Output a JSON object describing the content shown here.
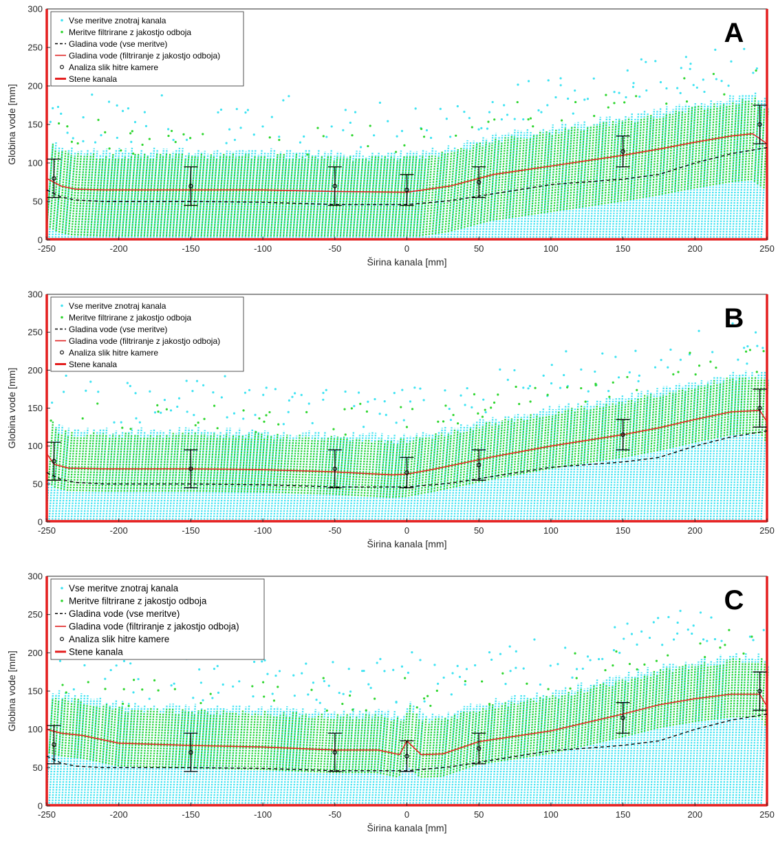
{
  "colors": {
    "all_points": "#3fe3f2",
    "filtered_points": "#2fd62f",
    "surface_all": "#000000",
    "surface_filtered": "#e02020",
    "walls": "#e41e1e",
    "camera": "#000000"
  },
  "chart_data": [
    {
      "type": "scatter",
      "panel_label": "A",
      "xlabel": "Širina kanala [mm]",
      "ylabel": "Globina vode [mm]",
      "xlim": [
        -250,
        250
      ],
      "ylim": [
        0,
        300
      ],
      "xticks": [
        -250,
        -200,
        -150,
        -100,
        -50,
        0,
        50,
        100,
        150,
        200,
        250
      ],
      "yticks": [
        0,
        50,
        100,
        150,
        200,
        250,
        300
      ],
      "legend": {
        "placement": "top-left",
        "entries": [
          "Vse meritve znotraj kanala",
          "Meritve filtrirane z jakostjo odboja",
          "Gladina vode (vse meritve)",
          "Gladina vode (filtriranje z jakostjo odboja)",
          "Analiza slik hitre kamere",
          "Stene kanala"
        ]
      },
      "series": [
        {
          "name": "Gladina vode (vse meritve)",
          "style": "dashed",
          "x": [
            -250,
            -240,
            -230,
            -210,
            -150,
            -100,
            -50,
            0,
            30,
            60,
            100,
            150,
            175,
            200,
            225,
            250
          ],
          "y": [
            65,
            56,
            52,
            50,
            50,
            49,
            46,
            46,
            51,
            60,
            72,
            79,
            85,
            100,
            112,
            120
          ]
        },
        {
          "name": "Gladina vode (filtriranje z jakostjo odboja)",
          "style": "solid",
          "x": [
            -250,
            -240,
            -230,
            -210,
            -150,
            -100,
            -50,
            0,
            30,
            60,
            100,
            150,
            175,
            200,
            225,
            240,
            250
          ],
          "y": [
            80,
            70,
            66,
            65,
            65,
            65,
            63,
            62,
            70,
            85,
            96,
            110,
            118,
            127,
            135,
            138,
            125
          ]
        },
        {
          "name": "Analiza slik hitre kamere",
          "x": [
            -245,
            -150,
            -50,
            0,
            50,
            150,
            245
          ],
          "y": [
            80,
            70,
            70,
            65,
            75,
            115,
            150
          ],
          "err": [
            25,
            25,
            25,
            20,
            20,
            20,
            25
          ]
        }
      ],
      "walls_x": [
        -250,
        250
      ]
    },
    {
      "type": "scatter",
      "panel_label": "B",
      "xlabel": "Širina kanala [mm]",
      "ylabel": "Globina vode [mm]",
      "xlim": [
        -250,
        250
      ],
      "ylim": [
        0,
        300
      ],
      "xticks": [
        -250,
        -200,
        -150,
        -100,
        -50,
        0,
        50,
        100,
        150,
        200,
        250
      ],
      "yticks": [
        0,
        50,
        100,
        150,
        200,
        250,
        300
      ],
      "legend": {
        "placement": "top-left",
        "entries": [
          "Vse meritve znotraj kanala",
          "Meritve filtrirane z jakostjo odboja",
          "Gladina vode (vse meritve)",
          "Gladina vode (filtriranje z jakostjo odboja)",
          "Analiza slik hitre kamere",
          "Stene kanala"
        ]
      },
      "series": [
        {
          "name": "Gladina vode (vse meritve)",
          "style": "dashed",
          "x": [
            -250,
            -240,
            -230,
            -210,
            -150,
            -100,
            -50,
            0,
            30,
            60,
            100,
            150,
            175,
            200,
            225,
            250
          ],
          "y": [
            65,
            56,
            52,
            50,
            50,
            49,
            46,
            46,
            51,
            60,
            72,
            79,
            85,
            100,
            112,
            120
          ]
        },
        {
          "name": "Gladina vode (filtriranje z jakostjo odboja)",
          "style": "solid",
          "x": [
            -250,
            -245,
            -235,
            -210,
            -150,
            -100,
            -50,
            -10,
            0,
            20,
            60,
            100,
            150,
            175,
            200,
            225,
            245,
            250
          ],
          "y": [
            90,
            76,
            71,
            70,
            70,
            69,
            66,
            62,
            63,
            70,
            86,
            100,
            115,
            124,
            135,
            145,
            147,
            132
          ]
        },
        {
          "name": "Analiza slik hitre kamere",
          "x": [
            -245,
            -150,
            -50,
            0,
            50,
            150,
            245
          ],
          "y": [
            80,
            70,
            70,
            65,
            75,
            115,
            150
          ],
          "err": [
            25,
            25,
            25,
            20,
            20,
            20,
            25
          ]
        }
      ],
      "walls_x": [
        -250,
        250
      ]
    },
    {
      "type": "scatter",
      "panel_label": "C",
      "xlabel": "Širina kanala [mm]",
      "ylabel": "Globina vode [mm]",
      "xlim": [
        -250,
        250
      ],
      "ylim": [
        0,
        300
      ],
      "xticks": [
        -250,
        -200,
        -150,
        -100,
        -50,
        0,
        50,
        100,
        150,
        200,
        250
      ],
      "yticks": [
        0,
        50,
        100,
        150,
        200,
        250,
        300
      ],
      "legend": {
        "placement": "top-left",
        "entries": [
          "Vse meritve znotraj kanala",
          "Meritve filtrirane z jakostjo odboja",
          "Gladina vode (vse meritve)",
          "Gladina vode (filtriranje z jakostjo odboja)",
          "Analiza slik hitre kamere",
          "Stene kanala"
        ]
      },
      "series": [
        {
          "name": "Gladina vode (vse meritve)",
          "style": "dashed",
          "x": [
            -250,
            -240,
            -230,
            -210,
            -150,
            -100,
            -50,
            0,
            30,
            60,
            100,
            150,
            175,
            200,
            225,
            250
          ],
          "y": [
            65,
            56,
            52,
            50,
            50,
            49,
            46,
            46,
            51,
            60,
            72,
            79,
            85,
            100,
            112,
            120
          ]
        },
        {
          "name": "Gladina vode (filtriranje z jakostjo odboja)",
          "style": "solid",
          "x": [
            -250,
            -240,
            -225,
            -200,
            -150,
            -100,
            -50,
            -20,
            -5,
            0,
            10,
            25,
            50,
            100,
            150,
            175,
            200,
            225,
            245,
            250
          ],
          "y": [
            100,
            95,
            92,
            82,
            79,
            77,
            73,
            73,
            67,
            85,
            67,
            68,
            84,
            98,
            120,
            132,
            140,
            146,
            146,
            130
          ]
        },
        {
          "name": "Analiza slik hitre kamere",
          "x": [
            -245,
            -150,
            -50,
            0,
            50,
            150,
            245
          ],
          "y": [
            80,
            70,
            70,
            65,
            75,
            115,
            150
          ],
          "err": [
            25,
            25,
            25,
            20,
            20,
            20,
            25
          ]
        }
      ],
      "walls_x": [
        -250,
        250
      ]
    }
  ]
}
